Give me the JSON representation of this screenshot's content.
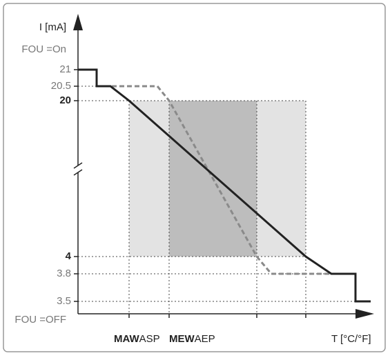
{
  "y_axis": {
    "title": "I [mA]",
    "top_note": "FOU =On",
    "bottom_note": "FOU =OFF",
    "labels": [
      {
        "text": "21",
        "bold": false
      },
      {
        "text": "20.5",
        "bold": false
      },
      {
        "text": "20",
        "bold": true
      },
      {
        "text": "4",
        "bold": true
      },
      {
        "text": "3.8",
        "bold": false
      },
      {
        "text": "3.5",
        "bold": false
      }
    ]
  },
  "x_axis": {
    "title": "T [°C/°F]",
    "labels": [
      {
        "strong": "MAW",
        "plain": "ASP"
      },
      {
        "strong": "MEW",
        "plain": "AEP"
      }
    ]
  }
}
